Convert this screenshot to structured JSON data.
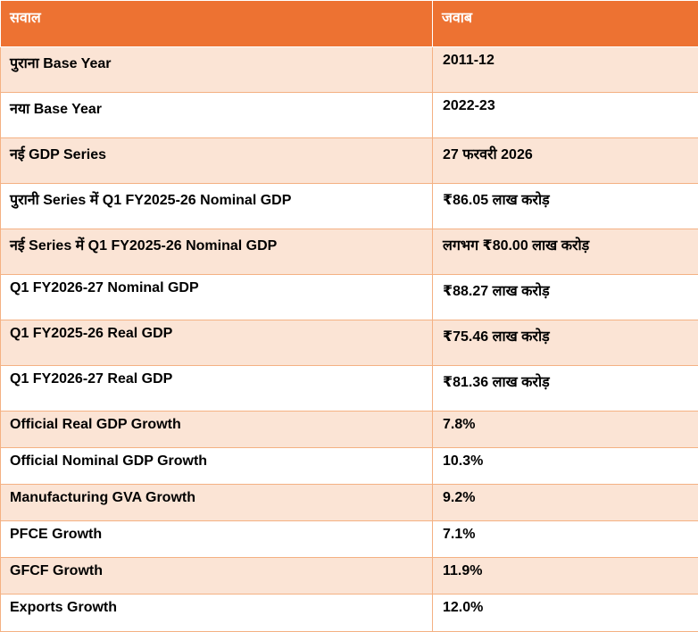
{
  "header": {
    "col_question": "सवाल",
    "col_answer": "जवाब"
  },
  "rows": [
    {
      "q": "पुराना  Base Year",
      "a": "2011-12"
    },
    {
      "q": "नया  Base Year",
      "a": "2022-23"
    },
    {
      "q": "नई  GDP Series",
      "a": "27 फरवरी  2026"
    },
    {
      "q": "पुरानी  Series में  Q1 FY2025-26 Nominal GDP",
      "a": "₹86.05 लाख  करोड़"
    },
    {
      "q": "नई  Series में  Q1 FY2025-26 Nominal GDP",
      "a": "लगभग  ₹80.00 लाख  करोड़"
    },
    {
      "q": "Q1 FY2026-27 Nominal GDP",
      "a": "₹88.27 लाख  करोड़"
    },
    {
      "q": "Q1 FY2025-26 Real GDP",
      "a": "₹75.46 लाख  करोड़"
    },
    {
      "q": "Q1 FY2026-27 Real GDP",
      "a": "₹81.36 लाख  करोड़"
    },
    {
      "q": "Official Real GDP Growth",
      "a": "7.8%"
    },
    {
      "q": "Official Nominal GDP Growth",
      "a": "10.3%"
    },
    {
      "q": "Manufacturing GVA Growth",
      "a": "9.2%"
    },
    {
      "q": "PFCE Growth",
      "a": "7.1%"
    },
    {
      "q": "GFCF Growth",
      "a": "11.9%"
    },
    {
      "q": "Exports Growth",
      "a": "12.0%"
    }
  ]
}
